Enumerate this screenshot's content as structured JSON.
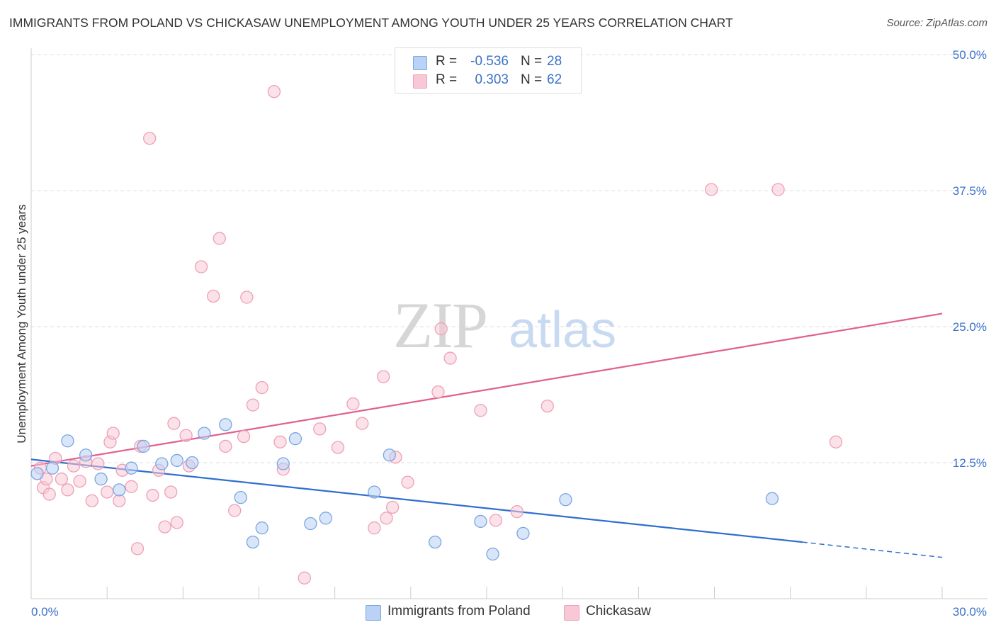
{
  "title": "IMMIGRANTS FROM POLAND VS CHICKASAW UNEMPLOYMENT AMONG YOUTH UNDER 25 YEARS CORRELATION CHART",
  "source": "Source: ZipAtlas.com",
  "colors": {
    "poland_fill": "#b9d2f5",
    "poland_stroke": "#7aa6e0",
    "poland_line": "#2f6fce",
    "chickasaw_fill": "#f8c8d6",
    "chickasaw_stroke": "#eea0b8",
    "chickasaw_line": "#e0608e",
    "axis_label": "#3a72c8"
  },
  "legend": {
    "rows": [
      {
        "r_label": "R =",
        "r_value": "-0.536",
        "n_label": "N =",
        "n_value": "28"
      },
      {
        "r_label": "R =",
        "r_value": "0.303",
        "n_label": "N =",
        "n_value": "62"
      }
    ]
  },
  "bottom_legend": [
    "Immigrants from Poland",
    "Chickasaw"
  ],
  "chart_data": {
    "type": "scatter",
    "title": "IMMIGRANTS FROM POLAND VS CHICKASAW UNEMPLOYMENT AMONG YOUTH UNDER 25 YEARS CORRELATION CHART",
    "xlabel": "",
    "ylabel": "Unemployment Among Youth under 25 years",
    "xlim": [
      0,
      30
    ],
    "ylim": [
      0,
      50
    ],
    "x_tick_labels": [
      "0.0%",
      "30.0%"
    ],
    "y_ticks": [
      12.5,
      25.0,
      37.5,
      50.0
    ],
    "y_tick_labels": [
      "12.5%",
      "25.0%",
      "37.5%",
      "50.0%"
    ],
    "grid": true,
    "legend_position": "top-center",
    "series": [
      {
        "name": "Immigrants from Poland",
        "points": [
          [
            0.2,
            11.5
          ],
          [
            0.7,
            12.0
          ],
          [
            1.2,
            14.5
          ],
          [
            1.8,
            13.2
          ],
          [
            2.3,
            11.0
          ],
          [
            2.9,
            10.0
          ],
          [
            3.3,
            12.0
          ],
          [
            3.7,
            14.0
          ],
          [
            4.3,
            12.4
          ],
          [
            4.8,
            12.7
          ],
          [
            5.3,
            12.5
          ],
          [
            5.7,
            15.2
          ],
          [
            6.4,
            16.0
          ],
          [
            6.9,
            9.3
          ],
          [
            7.3,
            5.2
          ],
          [
            7.6,
            6.5
          ],
          [
            8.3,
            12.4
          ],
          [
            8.7,
            14.7
          ],
          [
            9.2,
            6.9
          ],
          [
            9.7,
            7.4
          ],
          [
            11.3,
            9.8
          ],
          [
            11.8,
            13.2
          ],
          [
            13.3,
            5.2
          ],
          [
            14.8,
            7.1
          ],
          [
            15.2,
            4.1
          ],
          [
            16.2,
            6.0
          ],
          [
            17.6,
            9.1
          ],
          [
            24.4,
            9.2
          ]
        ],
        "trend": {
          "x1": 0,
          "y1": 12.8,
          "x2": 25.4,
          "y2": 5.2,
          "dash_to_x": 30,
          "dash_to_y": 3.8
        }
      },
      {
        "name": "Chickasaw",
        "points": [
          [
            0.3,
            12.0
          ],
          [
            0.4,
            10.2
          ],
          [
            0.5,
            11.0
          ],
          [
            0.6,
            9.6
          ],
          [
            0.8,
            12.9
          ],
          [
            1.0,
            11.0
          ],
          [
            1.2,
            10.0
          ],
          [
            1.4,
            12.2
          ],
          [
            1.6,
            10.8
          ],
          [
            1.8,
            12.6
          ],
          [
            2.0,
            9.0
          ],
          [
            2.2,
            12.4
          ],
          [
            2.5,
            9.8
          ],
          [
            2.6,
            14.4
          ],
          [
            2.7,
            15.2
          ],
          [
            2.9,
            9.0
          ],
          [
            3.0,
            11.8
          ],
          [
            3.3,
            10.3
          ],
          [
            3.5,
            4.6
          ],
          [
            3.6,
            14.0
          ],
          [
            3.9,
            42.3
          ],
          [
            4.0,
            9.5
          ],
          [
            4.2,
            11.8
          ],
          [
            4.4,
            6.6
          ],
          [
            4.6,
            9.8
          ],
          [
            4.7,
            16.1
          ],
          [
            4.8,
            7.0
          ],
          [
            5.1,
            15.0
          ],
          [
            5.2,
            12.2
          ],
          [
            5.6,
            30.5
          ],
          [
            6.0,
            27.8
          ],
          [
            6.2,
            33.1
          ],
          [
            6.4,
            14.0
          ],
          [
            6.7,
            8.1
          ],
          [
            7.0,
            14.9
          ],
          [
            7.1,
            27.7
          ],
          [
            7.3,
            17.8
          ],
          [
            7.6,
            19.4
          ],
          [
            8.0,
            46.6
          ],
          [
            8.2,
            14.4
          ],
          [
            8.3,
            11.9
          ],
          [
            9.0,
            1.9
          ],
          [
            9.5,
            15.6
          ],
          [
            10.1,
            13.9
          ],
          [
            10.6,
            17.9
          ],
          [
            10.9,
            16.1
          ],
          [
            11.3,
            6.5
          ],
          [
            11.6,
            20.4
          ],
          [
            11.7,
            7.4
          ],
          [
            11.9,
            8.4
          ],
          [
            12.0,
            13.0
          ],
          [
            12.4,
            10.7
          ],
          [
            13.4,
            19.0
          ],
          [
            13.5,
            24.8
          ],
          [
            13.8,
            22.1
          ],
          [
            14.8,
            17.3
          ],
          [
            15.3,
            7.2
          ],
          [
            16.0,
            8.0
          ],
          [
            17.0,
            17.7
          ],
          [
            22.4,
            37.6
          ],
          [
            24.6,
            37.6
          ],
          [
            26.5,
            14.4
          ]
        ],
        "trend": {
          "x1": 0,
          "y1": 12.2,
          "x2": 30,
          "y2": 26.2
        }
      }
    ]
  }
}
